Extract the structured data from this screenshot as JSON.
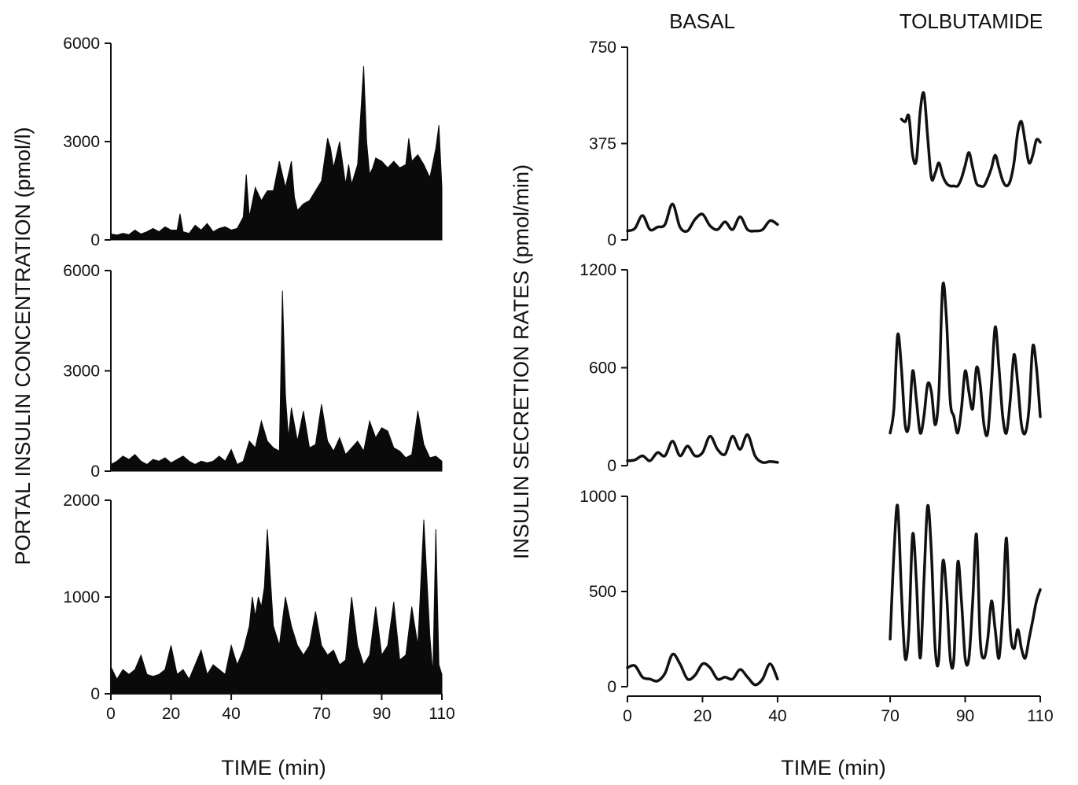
{
  "chart_data": [
    {
      "type": "area",
      "panel": "left",
      "ylabel": "PORTAL INSULIN CONCENTRATION (pmol/l)",
      "xlabel": "TIME (min)",
      "x_ticks": [
        0,
        20,
        40,
        70,
        90,
        110
      ],
      "x_tick_labels": [
        "0",
        "20",
        "40",
        "70",
        "90",
        "110"
      ],
      "subplots": [
        {
          "ylim": [
            0,
            6000
          ],
          "y_ticks": [
            0,
            3000,
            6000
          ],
          "y_tick_labels": [
            "0",
            "3000",
            "6000"
          ],
          "x": [
            0,
            2,
            4,
            6,
            8,
            10,
            12,
            14,
            16,
            18,
            20,
            22,
            23,
            24,
            26,
            28,
            30,
            32,
            34,
            36,
            38,
            40,
            42,
            44,
            45,
            46,
            48,
            50,
            52,
            54,
            56,
            58,
            60,
            61,
            62,
            64,
            66,
            68,
            70,
            72,
            73,
            74,
            76,
            78,
            79,
            80,
            82,
            84,
            85,
            86,
            87,
            88,
            90,
            92,
            94,
            96,
            98,
            99,
            100,
            102,
            104,
            106,
            108,
            109,
            110
          ],
          "values": [
            180,
            150,
            200,
            160,
            300,
            180,
            250,
            350,
            250,
            400,
            300,
            300,
            800,
            250,
            200,
            450,
            300,
            500,
            250,
            350,
            400,
            300,
            350,
            700,
            2000,
            700,
            1600,
            1200,
            1500,
            1500,
            2400,
            1600,
            2400,
            1300,
            900,
            1100,
            1200,
            1500,
            1800,
            3100,
            2800,
            2200,
            3000,
            1700,
            2300,
            1700,
            2300,
            5300,
            3000,
            2000,
            2200,
            2500,
            2400,
            2200,
            2400,
            2200,
            2300,
            3100,
            2400,
            2600,
            2300,
            1900,
            2800,
            3500,
            1600
          ]
        },
        {
          "ylim": [
            0,
            6000
          ],
          "y_ticks": [
            0,
            3000,
            6000
          ],
          "y_tick_labels": [
            "0",
            "3000",
            "6000"
          ],
          "x": [
            0,
            2,
            4,
            6,
            8,
            10,
            12,
            14,
            16,
            18,
            20,
            22,
            24,
            26,
            28,
            30,
            32,
            34,
            36,
            38,
            40,
            42,
            44,
            46,
            48,
            50,
            52,
            54,
            56,
            57,
            58,
            59,
            60,
            62,
            64,
            66,
            68,
            70,
            72,
            74,
            76,
            78,
            80,
            82,
            84,
            86,
            88,
            90,
            92,
            94,
            96,
            98,
            100,
            102,
            104,
            106,
            108,
            110
          ],
          "values": [
            200,
            300,
            450,
            350,
            500,
            300,
            200,
            350,
            300,
            400,
            250,
            350,
            450,
            300,
            200,
            300,
            250,
            300,
            450,
            300,
            650,
            200,
            300,
            900,
            700,
            1500,
            900,
            700,
            600,
            5400,
            2300,
            1000,
            1900,
            900,
            1800,
            700,
            800,
            2000,
            900,
            600,
            1000,
            500,
            700,
            900,
            600,
            1500,
            1000,
            1300,
            1200,
            700,
            600,
            400,
            500,
            1800,
            800,
            400,
            450,
            300
          ]
        },
        {
          "ylim": [
            0,
            2000
          ],
          "y_ticks": [
            0,
            1000,
            2000
          ],
          "y_tick_labels": [
            "0",
            "1000",
            "2000"
          ],
          "x": [
            0,
            2,
            4,
            6,
            8,
            10,
            12,
            14,
            16,
            18,
            20,
            22,
            24,
            26,
            28,
            30,
            32,
            34,
            36,
            38,
            40,
            42,
            44,
            46,
            47,
            48,
            49,
            50,
            51,
            52,
            54,
            56,
            58,
            60,
            62,
            64,
            66,
            68,
            70,
            72,
            74,
            76,
            78,
            80,
            82,
            84,
            86,
            88,
            90,
            92,
            94,
            96,
            98,
            100,
            102,
            104,
            106,
            107,
            108,
            109,
            110
          ],
          "values": [
            280,
            150,
            250,
            200,
            250,
            400,
            200,
            180,
            200,
            250,
            500,
            200,
            250,
            150,
            300,
            450,
            200,
            300,
            250,
            200,
            500,
            300,
            450,
            700,
            1000,
            800,
            1000,
            900,
            1100,
            1700,
            700,
            500,
            1000,
            700,
            500,
            400,
            500,
            850,
            500,
            400,
            450,
            300,
            350,
            1000,
            500,
            300,
            400,
            900,
            400,
            500,
            950,
            350,
            400,
            900,
            500,
            1800,
            600,
            200,
            1700,
            300,
            200
          ]
        }
      ]
    },
    {
      "type": "line",
      "panel": "right",
      "ylabel": "INSULIN SECRETION RATES (pmol/min)",
      "xlabel": "TIME (min)",
      "phase_labels": [
        "BASAL",
        "TOLBUTAMIDE"
      ],
      "x_ticks": [
        0,
        20,
        40,
        70,
        90,
        110
      ],
      "x_tick_labels": [
        "0",
        "20",
        "40",
        "70",
        "90",
        "110"
      ],
      "subplots": [
        {
          "ylim": [
            0,
            750
          ],
          "y_ticks": [
            0,
            375,
            750
          ],
          "y_tick_labels": [
            "0",
            "375",
            "750"
          ],
          "segments": [
            {
              "x": [
                0,
                2,
                4,
                6,
                8,
                10,
                12,
                14,
                16,
                18,
                20,
                22,
                24,
                26,
                28,
                30,
                32,
                34,
                36,
                38,
                40
              ],
              "values": [
                35,
                45,
                95,
                40,
                50,
                60,
                140,
                50,
                35,
                80,
                100,
                55,
                40,
                70,
                40,
                90,
                40,
                35,
                40,
                75,
                60
              ]
            },
            {
              "x": [
                73,
                74,
                75,
                76,
                77,
                78,
                79,
                80,
                81,
                82,
                83,
                84,
                85,
                86,
                87,
                88,
                89,
                90,
                91,
                92,
                93,
                94,
                95,
                96,
                97,
                98,
                99,
                100,
                101,
                102,
                103,
                104,
                105,
                106,
                107,
                108,
                109,
                110
              ],
              "values": [
                470,
                460,
                480,
                330,
                310,
                500,
                570,
                400,
                240,
                260,
                300,
                250,
                220,
                210,
                210,
                210,
                240,
                290,
                340,
                280,
                220,
                210,
                210,
                240,
                280,
                330,
                280,
                230,
                210,
                230,
                300,
                420,
                460,
                380,
                300,
                330,
                390,
                380
              ]
            }
          ]
        },
        {
          "ylim": [
            0,
            1200
          ],
          "y_ticks": [
            0,
            600,
            1200
          ],
          "y_tick_labels": [
            "0",
            "600",
            "1200"
          ],
          "segments": [
            {
              "x": [
                0,
                2,
                4,
                6,
                8,
                10,
                12,
                14,
                16,
                18,
                20,
                22,
                24,
                26,
                28,
                30,
                32,
                34,
                36,
                38,
                40
              ],
              "values": [
                30,
                35,
                60,
                30,
                80,
                60,
                150,
                60,
                120,
                60,
                80,
                180,
                100,
                70,
                180,
                100,
                190,
                60,
                20,
                25,
                20
              ]
            },
            {
              "x": [
                70,
                71,
                72,
                73,
                74,
                75,
                76,
                77,
                78,
                79,
                80,
                81,
                82,
                83,
                84,
                85,
                86,
                87,
                88,
                89,
                90,
                91,
                92,
                93,
                94,
                95,
                96,
                97,
                98,
                99,
                100,
                101,
                102,
                103,
                104,
                105,
                106,
                107,
                108,
                109,
                110
              ],
              "values": [
                200,
                350,
                800,
                600,
                250,
                250,
                580,
                400,
                200,
                300,
                500,
                450,
                250,
                450,
                1100,
                900,
                400,
                300,
                200,
                350,
                580,
                450,
                350,
                600,
                500,
                250,
                200,
                500,
                850,
                600,
                300,
                200,
                400,
                680,
                500,
                250,
                200,
                350,
                730,
                600,
                300
              ]
            }
          ]
        },
        {
          "ylim": [
            0,
            1000
          ],
          "y_ticks": [
            0,
            500,
            1000
          ],
          "y_tick_labels": [
            "0",
            "500",
            "1000"
          ],
          "segments": [
            {
              "x": [
                0,
                2,
                4,
                6,
                8,
                10,
                12,
                14,
                16,
                18,
                20,
                22,
                24,
                26,
                28,
                30,
                32,
                34,
                36,
                38,
                40
              ],
              "values": [
                100,
                110,
                50,
                40,
                30,
                70,
                170,
                120,
                40,
                60,
                120,
                100,
                40,
                50,
                40,
                90,
                50,
                10,
                40,
                120,
                40
              ]
            },
            {
              "x": [
                70,
                71,
                72,
                73,
                74,
                75,
                76,
                77,
                78,
                79,
                80,
                81,
                82,
                83,
                84,
                85,
                86,
                87,
                88,
                89,
                90,
                91,
                92,
                93,
                94,
                95,
                96,
                97,
                98,
                99,
                100,
                101,
                102,
                103,
                104,
                105,
                106,
                107,
                108,
                109,
                110
              ],
              "values": [
                250,
                700,
                950,
                500,
                150,
                300,
                800,
                550,
                150,
                550,
                950,
                700,
                200,
                150,
                650,
                500,
                150,
                150,
                650,
                450,
                150,
                150,
                450,
                800,
                250,
                150,
                250,
                450,
                300,
                150,
                400,
                780,
                300,
                200,
                300,
                200,
                150,
                250,
                350,
                450,
                510
              ]
            }
          ]
        }
      ]
    }
  ]
}
